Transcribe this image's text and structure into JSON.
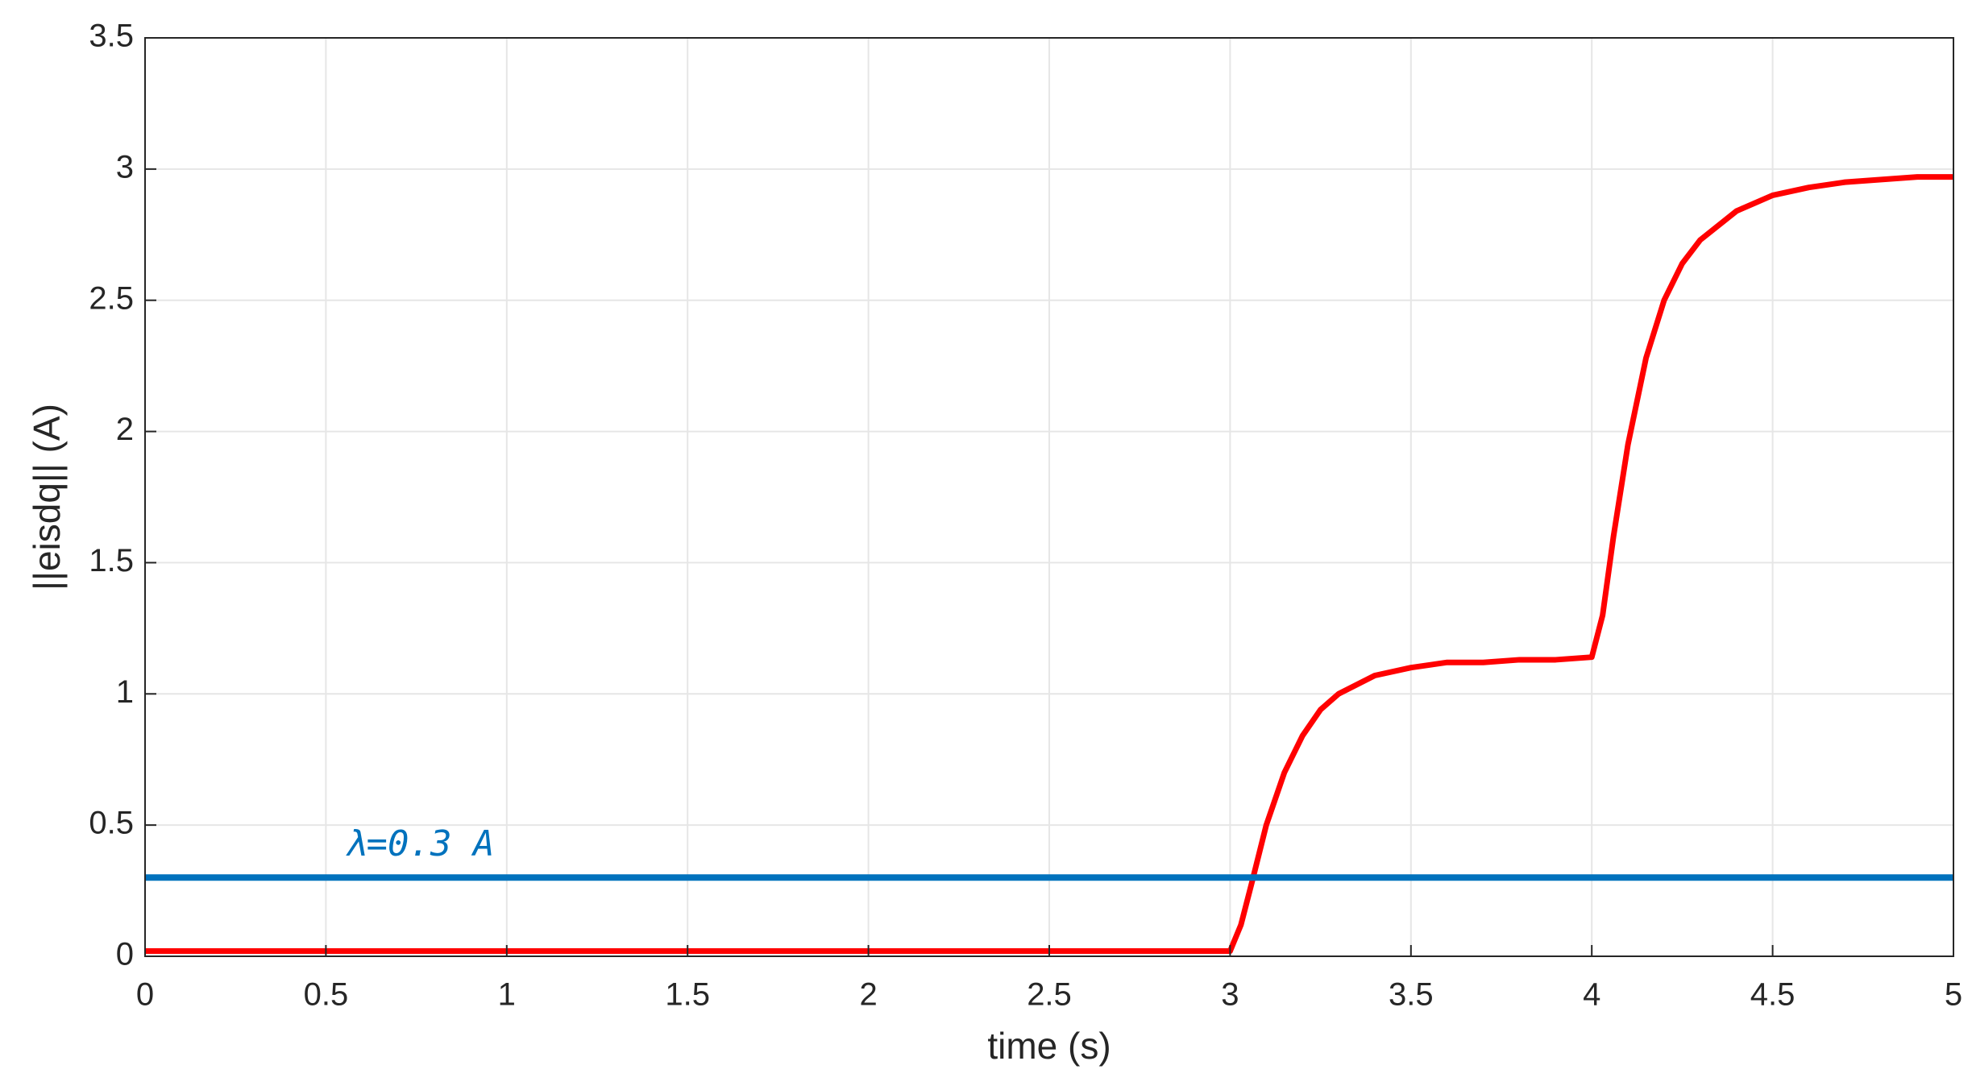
{
  "chart_data": {
    "type": "line",
    "xlabel": "time (s)",
    "ylabel": "||eisdq|| (A)",
    "annotation": "λ=0.3 A",
    "grid": true,
    "xlim": [
      0,
      5
    ],
    "ylim": [
      0,
      3.5
    ],
    "xticks": [
      0,
      0.5,
      1,
      1.5,
      2,
      2.5,
      3,
      3.5,
      4,
      4.5,
      5
    ],
    "yticks": [
      0,
      0.5,
      1,
      1.5,
      2,
      2.5,
      3,
      3.5
    ],
    "series": [
      {
        "color": "#ff0000",
        "x": [
          0,
          0.5,
          1,
          1.5,
          2,
          2.5,
          3,
          3.03,
          3.06,
          3.1,
          3.15,
          3.2,
          3.25,
          3.3,
          3.4,
          3.5,
          3.6,
          3.7,
          3.8,
          3.9,
          4,
          4.03,
          4.06,
          4.1,
          4.15,
          4.2,
          4.25,
          4.3,
          4.4,
          4.5,
          4.6,
          4.7,
          4.8,
          4.9,
          5
        ],
        "values": [
          0.02,
          0.02,
          0.02,
          0.02,
          0.02,
          0.02,
          0.02,
          0.12,
          0.28,
          0.5,
          0.7,
          0.84,
          0.94,
          1.0,
          1.07,
          1.1,
          1.12,
          1.12,
          1.13,
          1.13,
          1.14,
          1.3,
          1.6,
          1.95,
          2.28,
          2.5,
          2.64,
          2.73,
          2.84,
          2.9,
          2.93,
          2.95,
          2.96,
          2.97,
          2.97
        ]
      },
      {
        "color": "#0072bd",
        "x": [
          0,
          5
        ],
        "values": [
          0.3,
          0.3
        ]
      }
    ]
  }
}
